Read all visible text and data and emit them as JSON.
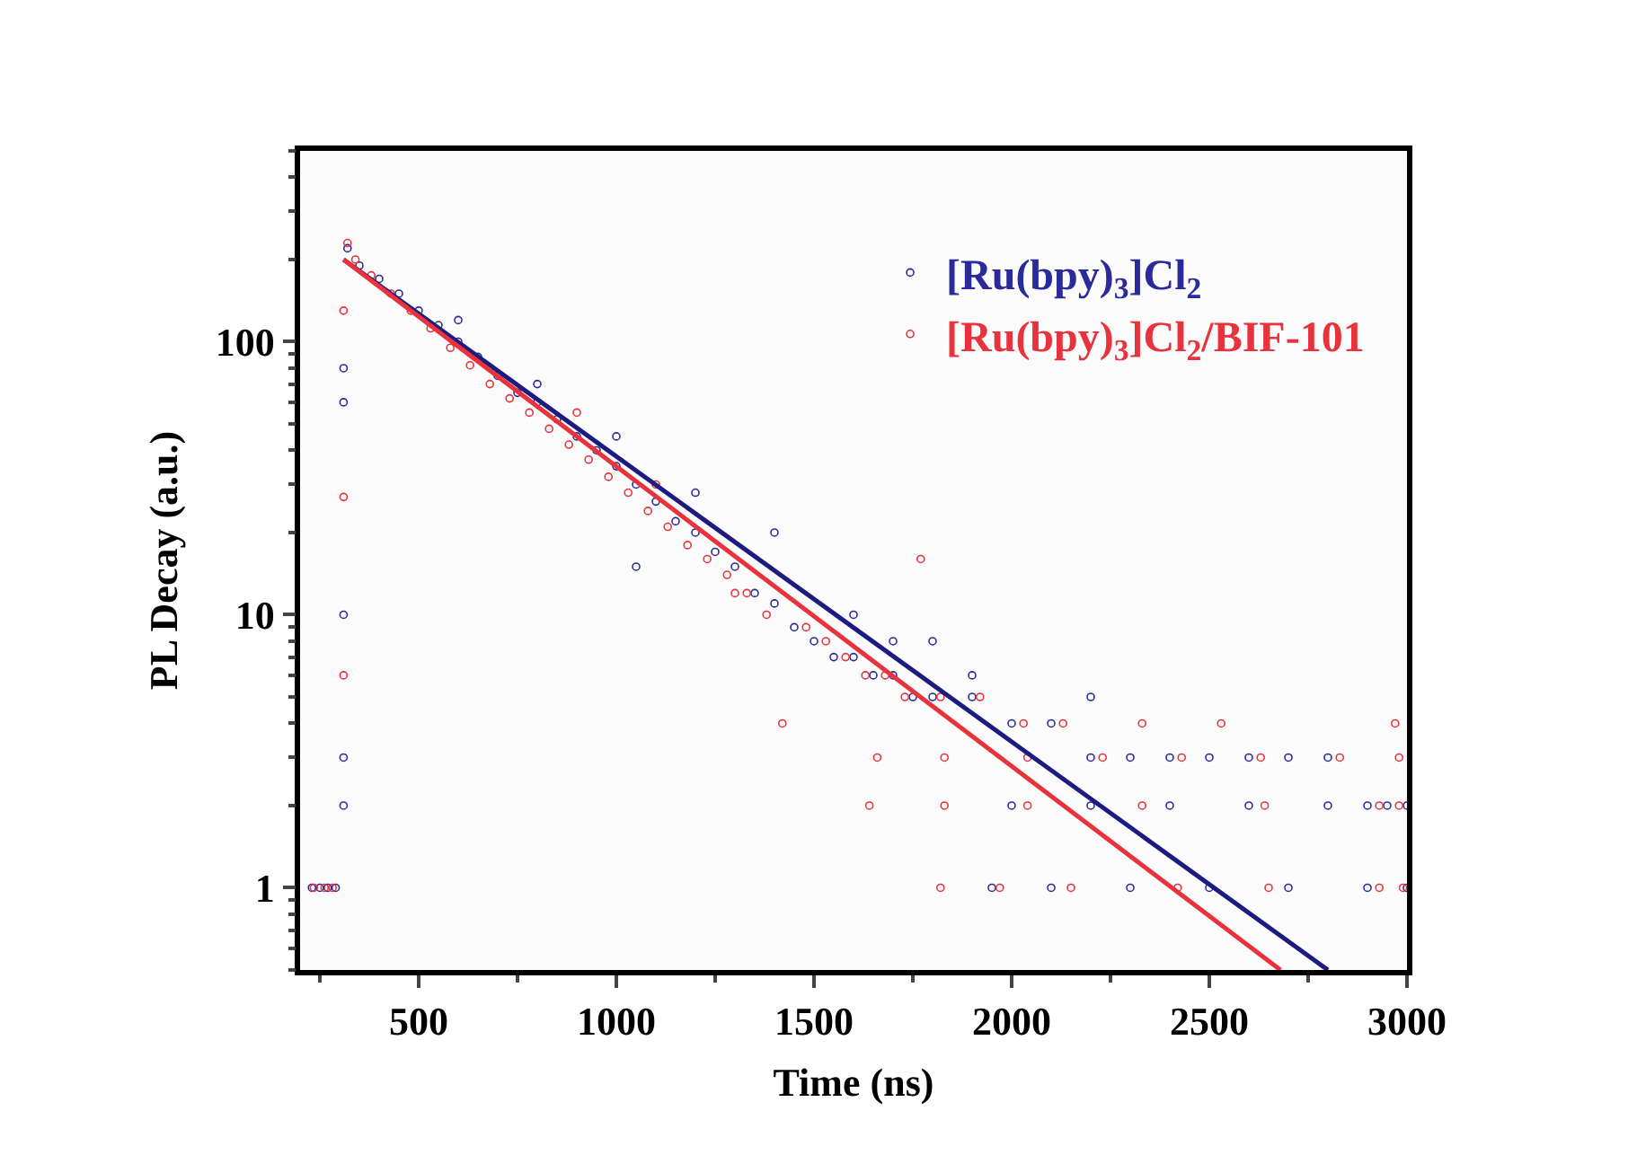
{
  "chart_data": {
    "type": "scatter",
    "xlabel": "Time (ns)",
    "ylabel": "PL Decay (a.u.)",
    "log": "y",
    "xlim": [
      200,
      3000
    ],
    "xticks": [
      500,
      1000,
      1500,
      2000,
      2500,
      3000
    ],
    "ylim": [
      0.5,
      500
    ],
    "yticks": [
      1,
      10,
      100
    ],
    "legend": "top right",
    "marker": "circle",
    "series": [
      {
        "name": "[Ru(bpy)$_{3}$]Cl$_{2}$",
        "color": "#2a2a9a",
        "x": [
          230,
          250,
          270,
          290,
          310,
          310,
          310,
          310,
          310,
          320,
          350,
          400,
          450,
          500,
          550,
          600,
          600,
          650,
          700,
          750,
          800,
          800,
          850,
          900,
          950,
          1000,
          1000,
          1050,
          1050,
          1100,
          1150,
          1200,
          1200,
          1250,
          1300,
          1350,
          1400,
          1400,
          1450,
          1500,
          1550,
          1600,
          1600,
          1650,
          1700,
          1700,
          1750,
          1800,
          1800,
          1900,
          1900,
          2000,
          2100,
          2200,
          2200,
          2300,
          2400,
          2500,
          2600,
          2700,
          2800,
          2900,
          2950,
          3000,
          2000,
          2200,
          2400,
          2600,
          2800,
          1950,
          2100,
          2300,
          2500,
          2700,
          2900,
          3000
        ],
        "values": [
          1,
          1,
          1,
          1,
          80,
          60,
          10,
          3,
          2,
          220,
          190,
          170,
          150,
          130,
          115,
          100,
          120,
          88,
          75,
          65,
          60,
          70,
          52,
          45,
          40,
          35,
          45,
          30,
          15,
          26,
          22,
          20,
          28,
          17,
          15,
          12,
          11,
          20,
          9,
          8,
          7,
          7,
          10,
          6,
          6,
          8,
          5,
          5,
          8,
          5,
          6,
          4,
          4,
          3,
          5,
          3,
          3,
          3,
          3,
          3,
          3,
          2,
          2,
          2,
          2,
          2,
          2,
          2,
          2,
          1,
          1,
          1,
          1,
          1,
          1,
          1
        ]
      },
      {
        "name": "[Ru(bpy)$_{3}$]Cl$_{2}$/BIF-101",
        "color": "#e8323c",
        "x": [
          235,
          262,
          282,
          310,
          310,
          310,
          320,
          340,
          380,
          430,
          480,
          530,
          580,
          630,
          680,
          730,
          780,
          830,
          880,
          930,
          980,
          1030,
          1080,
          1130,
          1180,
          1230,
          1280,
          1330,
          1380,
          1420,
          1480,
          1530,
          1580,
          1630,
          1680,
          1730,
          1770,
          1820,
          1920,
          2030,
          2130,
          2330,
          2530,
          2970,
          1660,
          1830,
          2040,
          2230,
          2430,
          2630,
          2830,
          2980,
          1640,
          1830,
          2040,
          2330,
          2640,
          2930,
          2980,
          1820,
          1970,
          2150,
          2420,
          2650,
          2930,
          2990,
          900,
          1100,
          1300
        ],
        "values": [
          1,
          1,
          1,
          130,
          27,
          6,
          230,
          200,
          175,
          150,
          130,
          112,
          95,
          82,
          70,
          62,
          55,
          48,
          42,
          37,
          32,
          28,
          24,
          21,
          18,
          16,
          14,
          12,
          10,
          4,
          9,
          8,
          7,
          6,
          6,
          5,
          16,
          5,
          5,
          4,
          4,
          4,
          4,
          4,
          3,
          3,
          3,
          3,
          3,
          3,
          3,
          3,
          2,
          2,
          2,
          2,
          2,
          2,
          2,
          1,
          1,
          1,
          1,
          1,
          1,
          1,
          55,
          30,
          12
        ]
      },
      {
        "type": "line",
        "marker": "none",
        "color": "#1c1c80",
        "x": [
          310,
          2800
        ],
        "values": [
          200,
          0.5
        ]
      },
      {
        "type": "line",
        "marker": "none",
        "color": "#e8323c",
        "x": [
          310,
          2680
        ],
        "values": [
          200,
          0.5
        ]
      }
    ]
  }
}
